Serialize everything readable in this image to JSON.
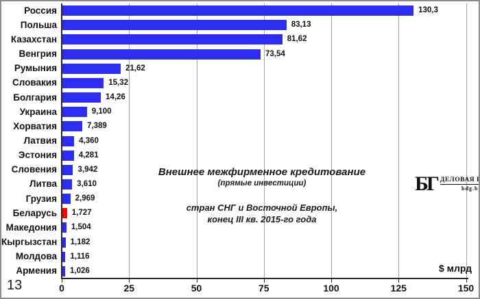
{
  "page": {
    "corner_number": "13"
  },
  "chart_data": {
    "type": "bar",
    "orientation": "horizontal",
    "title": "Внешнее межфирменное кредитование (прямые инвестиции) стран СНГ и Восточной Европы, конец III кв. 2015-го года",
    "title_lines": [
      "Внешнее межфирменное кредитование",
      "(прямые инвестиции)",
      "стран СНГ и Восточной  Европы,",
      "конец III кв. 2015-го года"
    ],
    "xlabel": "$ млрд",
    "ylabel": "",
    "categories": [
      "Россия",
      "Польша",
      "Казахстан",
      "Венгрия",
      "Румыния",
      "Словакия",
      "Болгария",
      "Украина",
      "Хорватия",
      "Латвия",
      "Эстония",
      "Словения",
      "Литва",
      "Грузия",
      "Беларусь",
      "Македония",
      "Кыргызстан",
      "Молдова",
      "Армения"
    ],
    "values": [
      130.3,
      83.13,
      81.62,
      73.54,
      21.62,
      15.32,
      14.26,
      9.1,
      7.389,
      4.36,
      4.281,
      3.942,
      3.61,
      2.969,
      1.727,
      1.504,
      1.182,
      1.116,
      1.026
    ],
    "value_labels": [
      "130,3",
      "83,13",
      "81,62",
      "73,54",
      "21,62",
      "15,32",
      "14,26",
      "9,100",
      "7,389",
      "4,360",
      "4,281",
      "3,942",
      "3,610",
      "2,969",
      "1,727",
      "1,504",
      "1,182",
      "1,116",
      "1,026"
    ],
    "highlight_index": 14,
    "colors": {
      "bar_default": "#2d2df2",
      "bar_highlight": "#fe0000",
      "gridline": "#a3a3a3",
      "axis": "#262626"
    },
    "xlim": [
      0,
      150
    ],
    "x_ticks": [
      0,
      25,
      50,
      75,
      100,
      125,
      150
    ],
    "x_tick_labels": [
      "0",
      "25",
      "50",
      "75",
      "100",
      "125",
      "150"
    ],
    "grid": "vertical-major",
    "legend": "none"
  },
  "logo": {
    "monogram": "БГ",
    "name": "ДЕЛОВАЯ ГАЗЕТА",
    "site": "bdg.by"
  }
}
